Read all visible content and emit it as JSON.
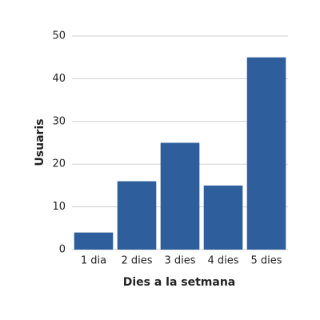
{
  "chart_data": {
    "type": "bar",
    "x_label": "Dies a la setmana",
    "y_label": "Usuaris",
    "categories": [
      "1 dia",
      "2 dies",
      "3 dies",
      "4 dies",
      "5 dies"
    ],
    "values": [
      4,
      16,
      25,
      15,
      45
    ],
    "color": "#2e5f9c",
    "ylim": [
      0,
      50
    ],
    "yticks": [
      0,
      10,
      20,
      30,
      40,
      50
    ],
    "grid": true
  }
}
